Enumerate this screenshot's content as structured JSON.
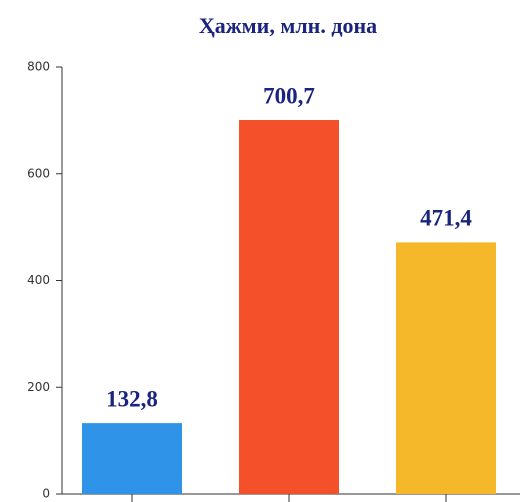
{
  "chart_data": {
    "type": "bar",
    "title": "Ҳажми, млн. дона",
    "categories": [
      null,
      null,
      null
    ],
    "values": [
      132.8,
      700.7,
      471.4
    ],
    "value_labels": [
      "132,8",
      "700,7",
      "471,4"
    ],
    "colors": [
      "#2f93e8",
      "#f4502a",
      "#f5b82b"
    ],
    "ylim": [
      0,
      800
    ],
    "yticks": [
      0,
      200,
      400,
      600,
      800
    ],
    "grid": false
  }
}
